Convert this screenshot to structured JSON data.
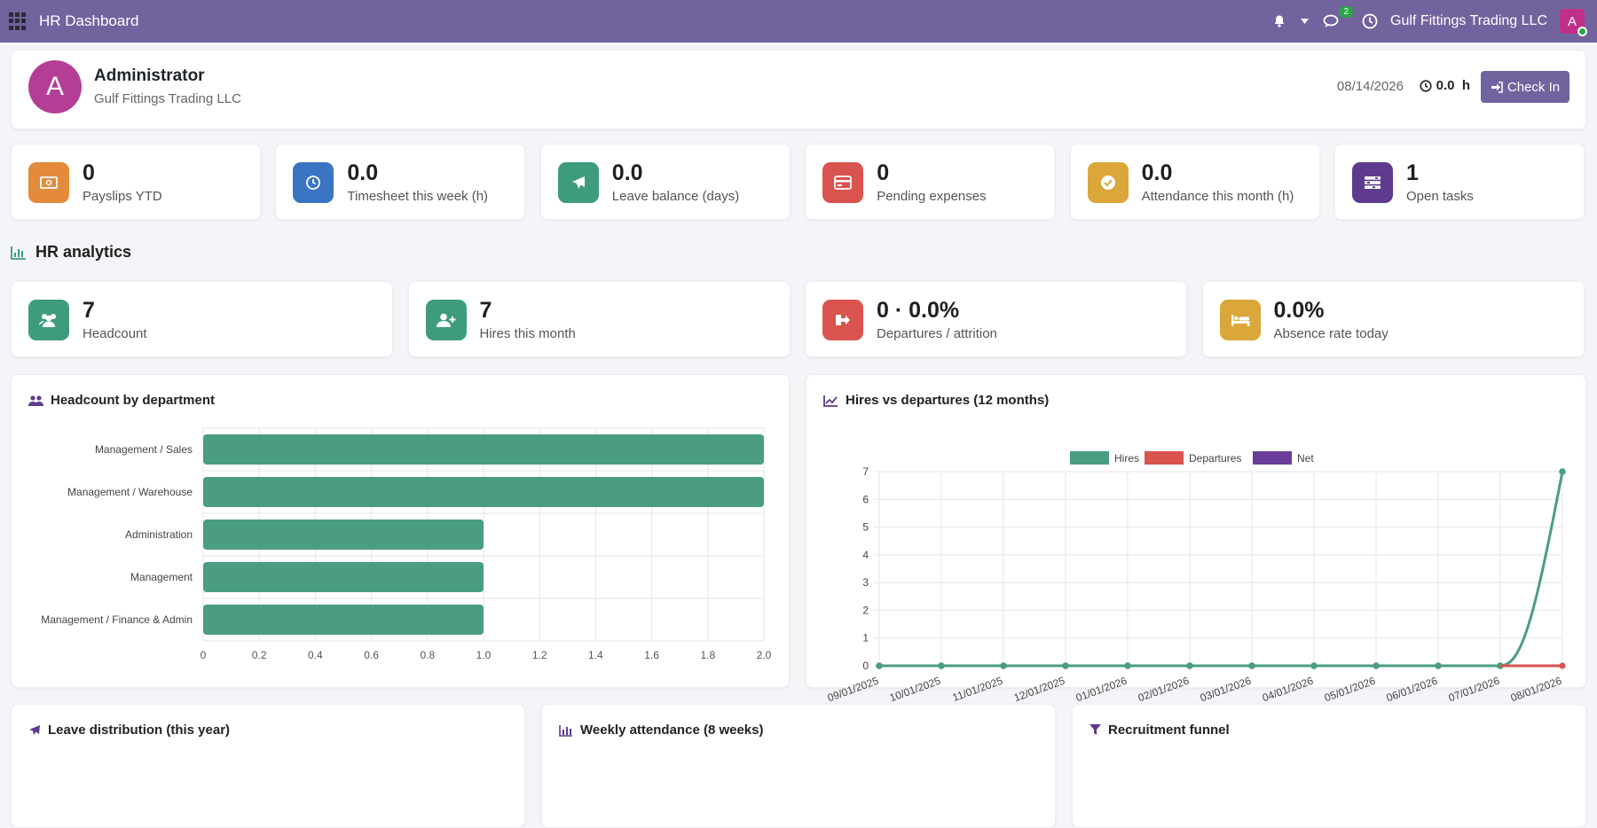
{
  "navbar": {
    "title": "HR Dashboard",
    "chat_badge": "2",
    "company": "Gulf Fittings Trading LLC",
    "avatar_letter": "A",
    "color": "#71639e"
  },
  "profile": {
    "avatar_letter": "A",
    "name": "Administrator",
    "company": "Gulf Fittings Trading LLC",
    "date": "08/14/2026",
    "hours": "0.0  h",
    "check_in_label": "Check In"
  },
  "stats": [
    {
      "value": "0",
      "label": "Payslips YTD",
      "color": "#e38a3c",
      "icon": "money-icon"
    },
    {
      "value": "0.0",
      "label": "Timesheet this week (h)",
      "color": "#3a75c4",
      "icon": "clock-icon"
    },
    {
      "value": "0.0",
      "label": "Leave balance (days)",
      "color": "#3f9b7d",
      "icon": "plane-icon"
    },
    {
      "value": "0",
      "label": "Pending expenses",
      "color": "#d9534f",
      "icon": "credit-card-icon"
    },
    {
      "value": "0.0",
      "label": "Attendance this month (h)",
      "color": "#dba63a",
      "icon": "check-circle-icon"
    },
    {
      "value": "1",
      "label": "Open tasks",
      "color": "#5e3b8f",
      "icon": "tasks-icon"
    }
  ],
  "analytics": {
    "title": "HR analytics",
    "kpis": [
      {
        "value": "7",
        "label": "Headcount",
        "color": "#3f9b7d",
        "icon": "users-icon"
      },
      {
        "value": "7",
        "label": "Hires this month",
        "color": "#3f9b7d",
        "icon": "user-plus-icon"
      },
      {
        "value": "0 · 0.0%",
        "label": "Departures / attrition",
        "color": "#d9534f",
        "icon": "sign-out-icon"
      },
      {
        "value": "0.0%",
        "label": "Absence rate today",
        "color": "#dba63a",
        "icon": "bed-icon"
      }
    ]
  },
  "panels": {
    "headcount_title": "Headcount by department",
    "hires_title": "Hires vs departures (12 months)",
    "leave_title": "Leave distribution (this year)",
    "attendance_title": "Weekly attendance (8 weeks)",
    "recruitment_title": "Recruitment funnel"
  },
  "chart_data": [
    {
      "type": "bar",
      "orientation": "horizontal",
      "title": "Headcount by department",
      "categories": [
        "Management / Sales",
        "Management / Warehouse",
        "Administration",
        "Management",
        "Management / Finance & Admin"
      ],
      "values": [
        2,
        2,
        1,
        1,
        1
      ],
      "xlim": [
        0,
        2.0
      ],
      "xticks": [
        "0",
        "0.2",
        "0.4",
        "0.6",
        "0.8",
        "1.0",
        "1.2",
        "1.4",
        "1.6",
        "1.8",
        "2.0"
      ],
      "color": "#4a9d7f",
      "grid": true
    },
    {
      "type": "line",
      "title": "Hires vs departures (12 months)",
      "x": [
        "09/01/2025",
        "10/01/2025",
        "11/01/2025",
        "12/01/2025",
        "01/01/2026",
        "02/01/2026",
        "03/01/2026",
        "04/01/2026",
        "05/01/2026",
        "06/01/2026",
        "07/01/2026",
        "08/01/2026"
      ],
      "series": [
        {
          "name": "Hires",
          "values": [
            0,
            0,
            0,
            0,
            0,
            0,
            0,
            0,
            0,
            0,
            0,
            7
          ],
          "color": "#4a9d7f"
        },
        {
          "name": "Departures",
          "values": [
            0,
            0,
            0,
            0,
            0,
            0,
            0,
            0,
            0,
            0,
            0,
            0
          ],
          "color": "#d9534f"
        },
        {
          "name": "Net",
          "values": [
            0,
            0,
            0,
            0,
            0,
            0,
            0,
            0,
            0,
            0,
            0,
            7
          ],
          "color": "#6a3d9a"
        }
      ],
      "ylim": [
        0,
        7
      ],
      "yticks": [
        "0",
        "1",
        "2",
        "3",
        "4",
        "5",
        "6",
        "7"
      ],
      "legend": "top",
      "grid": true
    }
  ]
}
